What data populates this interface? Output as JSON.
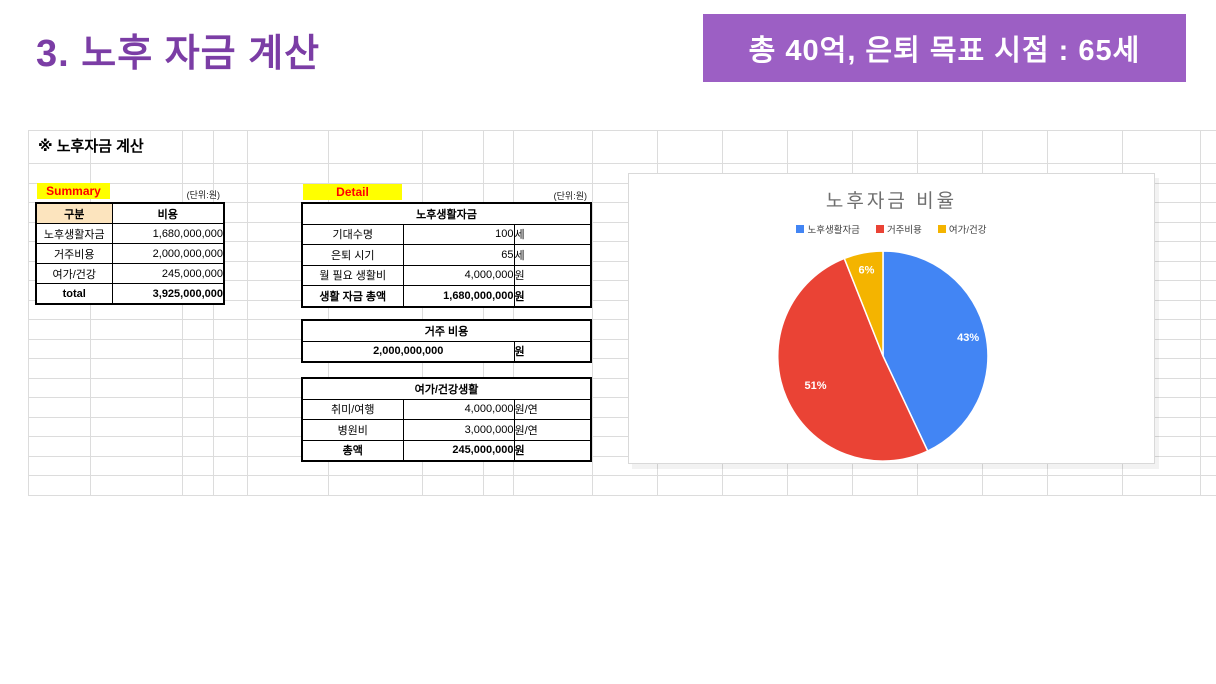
{
  "slide": {
    "title": "3. 노후 자금 계산",
    "badge": "총 40억, 은퇴 목표 시점  : 65세",
    "section_heading": "※ 노후자금 계산"
  },
  "summary": {
    "label": "Summary",
    "unit_note": "(단위:원)",
    "headers": [
      "구분",
      "비용"
    ],
    "rows": [
      [
        "노후생활자금",
        "1,680,000,000"
      ],
      [
        "거주비용",
        "2,000,000,000"
      ],
      [
        "여가/건강",
        "245,000,000"
      ]
    ],
    "total_row": [
      "total",
      "3,925,000,000"
    ]
  },
  "detail": {
    "label": "Detail",
    "unit_note": "(단위:원)",
    "living": {
      "title": "노후생활자금",
      "rows": [
        [
          "기대수명",
          "100",
          "세"
        ],
        [
          "은퇴 시기",
          "65",
          "세"
        ],
        [
          "월 필요 생활비",
          "4,000,000",
          "원"
        ],
        [
          "생활 자금 총액",
          "1,680,000,000",
          "원"
        ]
      ]
    },
    "housing": {
      "title": "거주 비용",
      "value": "2,000,000,000",
      "unit": "원"
    },
    "leisure": {
      "title": "여가/건강생활",
      "rows": [
        [
          "취미/여행",
          "4,000,000",
          "원/연"
        ],
        [
          "병원비",
          "3,000,000",
          "원/연"
        ],
        [
          "총액",
          "245,000,000",
          "원"
        ]
      ]
    }
  },
  "chart_data": {
    "type": "pie",
    "title": "노후자금 비율",
    "labels": [
      "노후생활자금",
      "거주비용",
      "여가/건강"
    ],
    "values": [
      43,
      51,
      6
    ],
    "value_labels": [
      "43%",
      "51%",
      "6%"
    ],
    "colors": [
      "#4285F4",
      "#EA4335",
      "#F4B400"
    ],
    "legend_position": "top",
    "start_angle_deg": 0,
    "direction": "clockwise"
  },
  "colors": {
    "title_purple": "#7B3DA5",
    "badge_bg": "#9C5FC4",
    "badge_text": "#FFFFFF",
    "highlight_yellow": "#FFFF00",
    "label_red": "#FF0000",
    "header_fill_tan": "#FCE4BE",
    "grid_line": "#DCDCDC",
    "chart_title_gray": "#6E6E6E",
    "table_border": "#000000"
  }
}
